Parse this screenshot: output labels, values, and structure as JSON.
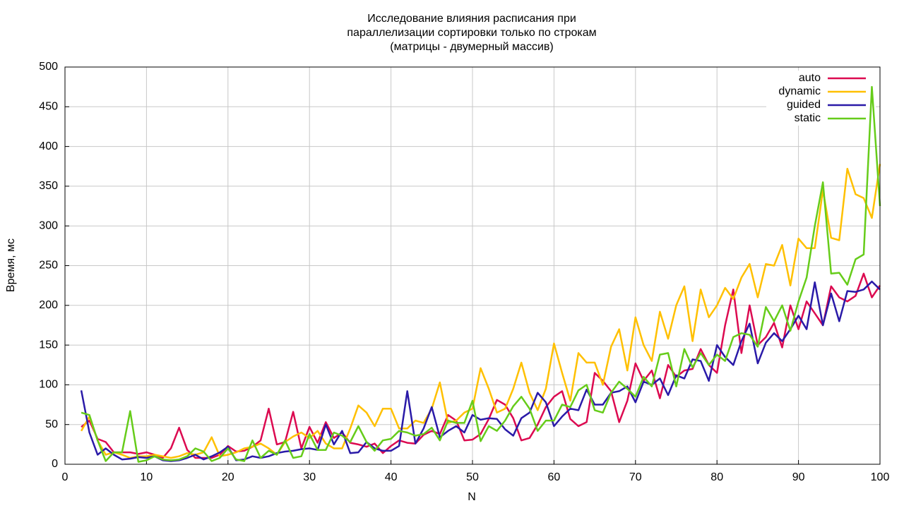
{
  "chart_data": {
    "type": "line",
    "title": [
      "Исследование влияния расписания при",
      "параллелизации сортировки только по строкам",
      "(матрицы - двумерный массив)"
    ],
    "xlabel": "N",
    "ylabel": "Время, мс",
    "x": [
      2,
      3,
      4,
      5,
      6,
      7,
      8,
      9,
      10,
      11,
      12,
      13,
      14,
      15,
      16,
      17,
      18,
      19,
      20,
      21,
      22,
      23,
      24,
      25,
      26,
      27,
      28,
      29,
      30,
      31,
      32,
      33,
      34,
      35,
      36,
      37,
      38,
      39,
      40,
      41,
      42,
      43,
      44,
      45,
      46,
      47,
      48,
      49,
      50,
      51,
      52,
      53,
      54,
      55,
      56,
      57,
      58,
      59,
      60,
      61,
      62,
      63,
      64,
      65,
      66,
      67,
      68,
      69,
      70,
      71,
      72,
      73,
      74,
      75,
      76,
      77,
      78,
      79,
      80,
      81,
      82,
      83,
      84,
      85,
      86,
      87,
      88,
      89,
      90,
      91,
      92,
      93,
      94,
      95,
      96,
      97,
      98,
      99,
      100
    ],
    "series": [
      {
        "name": "auto",
        "color": "#dc0a50",
        "values": [
          47,
          55,
          32,
          28,
          15,
          15,
          15,
          13,
          15,
          12,
          8,
          20,
          46,
          18,
          8,
          8,
          8,
          12,
          23,
          16,
          17,
          22,
          30,
          70,
          25,
          28,
          66,
          20,
          47,
          27,
          53,
          33,
          40,
          27,
          25,
          22,
          26,
          14,
          23,
          30,
          27,
          26,
          37,
          42,
          38,
          62,
          55,
          30,
          31,
          38,
          57,
          81,
          75,
          58,
          30,
          33,
          50,
          72,
          85,
          92,
          57,
          48,
          53,
          115,
          105,
          92,
          53,
          80,
          127,
          105,
          118,
          83,
          125,
          110,
          118,
          120,
          145,
          125,
          115,
          175,
          220,
          140,
          200,
          150,
          160,
          178,
          147,
          200,
          170,
          205,
          190,
          175,
          224,
          210,
          205,
          212,
          240,
          210,
          225
        ]
      },
      {
        "name": "dynamic",
        "color": "#ffc000",
        "values": [
          42,
          60,
          30,
          12,
          15,
          12,
          8,
          10,
          10,
          12,
          10,
          8,
          10,
          14,
          12,
          15,
          34,
          10,
          12,
          15,
          20,
          22,
          26,
          20,
          12,
          28,
          35,
          40,
          33,
          42,
          26,
          20,
          20,
          45,
          74,
          65,
          48,
          70,
          70,
          45,
          45,
          55,
          52,
          70,
          103,
          52,
          55,
          65,
          70,
          121,
          95,
          65,
          70,
          95,
          128,
          90,
          68,
          95,
          152,
          115,
          80,
          140,
          128,
          128,
          100,
          148,
          170,
          118,
          185,
          150,
          130,
          192,
          158,
          200,
          224,
          155,
          220,
          185,
          200,
          222,
          208,
          235,
          252,
          210,
          252,
          250,
          276,
          225,
          284,
          272,
          272,
          345,
          285,
          282,
          372,
          340,
          335,
          310,
          378
        ]
      },
      {
        "name": "guided",
        "color": "#2a1aa8",
        "values": [
          93,
          40,
          12,
          20,
          12,
          6,
          7,
          9,
          8,
          10,
          5,
          4,
          5,
          8,
          12,
          6,
          10,
          15,
          22,
          5,
          6,
          10,
          8,
          10,
          14,
          16,
          17,
          19,
          20,
          18,
          50,
          25,
          42,
          14,
          15,
          28,
          20,
          17,
          17,
          23,
          92,
          26,
          45,
          72,
          34,
          42,
          48,
          40,
          62,
          56,
          58,
          57,
          44,
          36,
          58,
          65,
          90,
          78,
          48,
          60,
          70,
          68,
          94,
          75,
          75,
          90,
          92,
          98,
          78,
          104,
          100,
          108,
          87,
          112,
          108,
          132,
          130,
          105,
          150,
          135,
          125,
          155,
          177,
          127,
          153,
          165,
          155,
          170,
          187,
          170,
          229,
          175,
          215,
          180,
          218,
          217,
          220,
          230,
          220
        ]
      },
      {
        "name": "static",
        "color": "#66cc1a",
        "values": [
          65,
          62,
          30,
          4,
          15,
          15,
          67,
          3,
          5,
          10,
          6,
          5,
          6,
          10,
          20,
          16,
          4,
          8,
          20,
          6,
          4,
          30,
          8,
          17,
          12,
          30,
          8,
          10,
          38,
          18,
          18,
          40,
          36,
          28,
          48,
          28,
          17,
          30,
          32,
          42,
          40,
          36,
          38,
          46,
          30,
          55,
          52,
          52,
          80,
          29,
          48,
          42,
          55,
          73,
          85,
          70,
          42,
          55,
          55,
          75,
          72,
          93,
          100,
          68,
          65,
          90,
          104,
          95,
          85,
          110,
          98,
          138,
          140,
          98,
          145,
          122,
          140,
          125,
          138,
          130,
          160,
          165,
          163,
          148,
          198,
          180,
          200,
          168,
          205,
          235,
          300,
          355,
          240,
          241,
          226,
          258,
          264,
          475,
          325
        ]
      }
    ],
    "xlim": [
      0,
      100
    ],
    "ylim": [
      0,
      500
    ],
    "xticks": [
      0,
      10,
      20,
      30,
      40,
      50,
      60,
      70,
      80,
      90,
      100
    ],
    "yticks": [
      0,
      50,
      100,
      150,
      200,
      250,
      300,
      350,
      400,
      450,
      500
    ],
    "grid": true,
    "legend": "top-right"
  }
}
